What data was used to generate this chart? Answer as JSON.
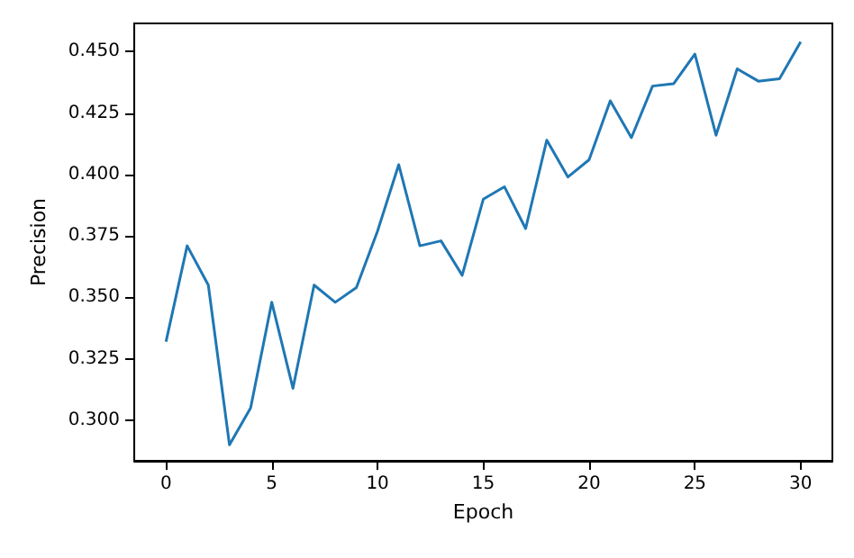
{
  "chart_data": {
    "type": "line",
    "xlabel": "Epoch",
    "ylabel": "Precision",
    "x": [
      0,
      1,
      2,
      3,
      4,
      5,
      6,
      7,
      8,
      9,
      10,
      11,
      12,
      13,
      14,
      15,
      16,
      17,
      18,
      19,
      20,
      21,
      22,
      23,
      24,
      25,
      26,
      27,
      28,
      29,
      30
    ],
    "series": [
      {
        "color": "#1f77b4",
        "values": [
          0.332,
          0.371,
          0.355,
          0.29,
          0.305,
          0.348,
          0.313,
          0.355,
          0.348,
          0.354,
          0.377,
          0.404,
          0.371,
          0.373,
          0.359,
          0.39,
          0.395,
          0.378,
          0.414,
          0.399,
          0.406,
          0.43,
          0.415,
          0.436,
          0.437,
          0.449,
          0.416,
          0.443,
          0.438,
          0.439,
          0.454
        ]
      }
    ],
    "xlim": [
      -1.5,
      31.5
    ],
    "xticks": [
      0,
      5,
      10,
      15,
      20,
      25,
      30
    ],
    "ylim": [
      0.2835,
      0.4615
    ],
    "yticks": [
      {
        "value": 0.3,
        "label": "0.300"
      },
      0.325,
      {
        "value": 0.35,
        "label": "0.350"
      },
      0.375,
      {
        "value": 0.4,
        "label": "0.400"
      },
      0.425,
      {
        "value": 0.45,
        "label": "0.450"
      }
    ],
    "grid": false,
    "marker": "none",
    "line_style": "solid"
  }
}
